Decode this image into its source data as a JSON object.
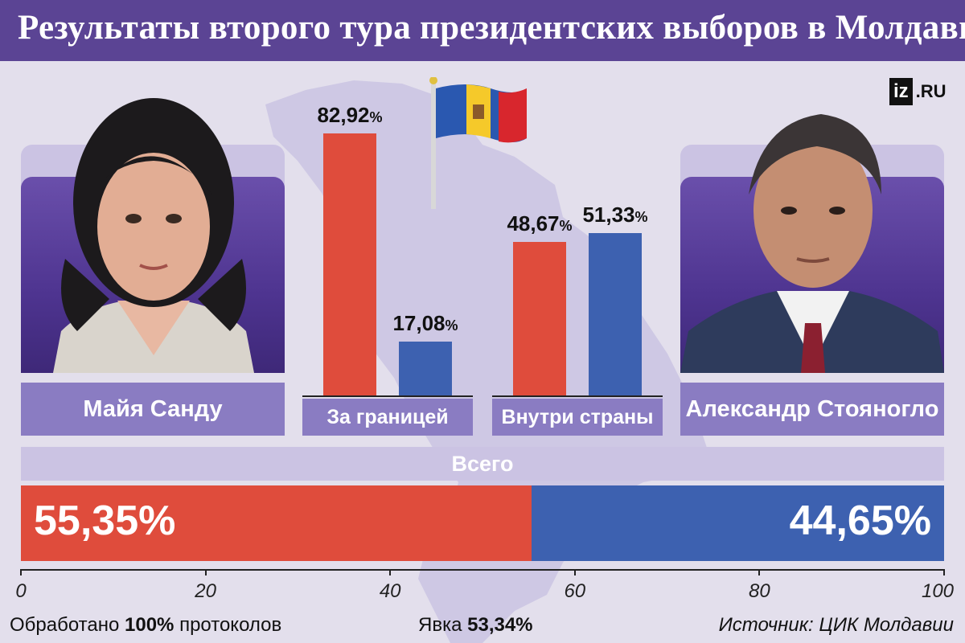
{
  "header": {
    "title": "Результаты второго тура президентских выборов в Молдавии"
  },
  "logo": {
    "mark": "iz",
    "suffix": ".RU"
  },
  "candidates": [
    {
      "name": "Майя Санду",
      "color": "#df4c3c"
    },
    {
      "name": "Александр Стояногло",
      "color": "#3d61b0"
    }
  ],
  "groups": [
    {
      "label": "За границей",
      "values_text": [
        "82,92",
        "17,08"
      ]
    },
    {
      "label": "Внутри страны",
      "values_text": [
        "48,67",
        "51,33"
      ]
    }
  ],
  "pct_sign": "%",
  "total": {
    "label": "Всего",
    "left_text": "55,35%",
    "right_text": "44,65%"
  },
  "axis_ticks": [
    "0",
    "20",
    "40",
    "60",
    "80",
    "100"
  ],
  "footer": {
    "processed_prefix": "Обработано ",
    "processed_value": "100%",
    "processed_suffix": " протоколов",
    "turnout_prefix": "Явка ",
    "turnout_value": "53,34%",
    "source": "Источник: ЦИК Молдавии"
  },
  "chart_data": [
    {
      "type": "bar",
      "categories": [
        "За границей",
        "Внутри страны"
      ],
      "series": [
        {
          "name": "Майя Санду",
          "values": [
            82.92,
            48.67
          ]
        },
        {
          "name": "Александр Стояногло",
          "values": [
            17.08,
            51.33
          ]
        }
      ],
      "ylim": [
        0,
        100
      ]
    },
    {
      "type": "bar",
      "orientation": "horizontal-stacked",
      "categories": [
        "Всего"
      ],
      "series": [
        {
          "name": "Майя Санду",
          "values": [
            55.35
          ]
        },
        {
          "name": "Александр Стояногло",
          "values": [
            44.65
          ]
        }
      ],
      "xlim": [
        0,
        100
      ],
      "xticks": [
        0,
        20,
        40,
        60,
        80,
        100
      ]
    }
  ]
}
